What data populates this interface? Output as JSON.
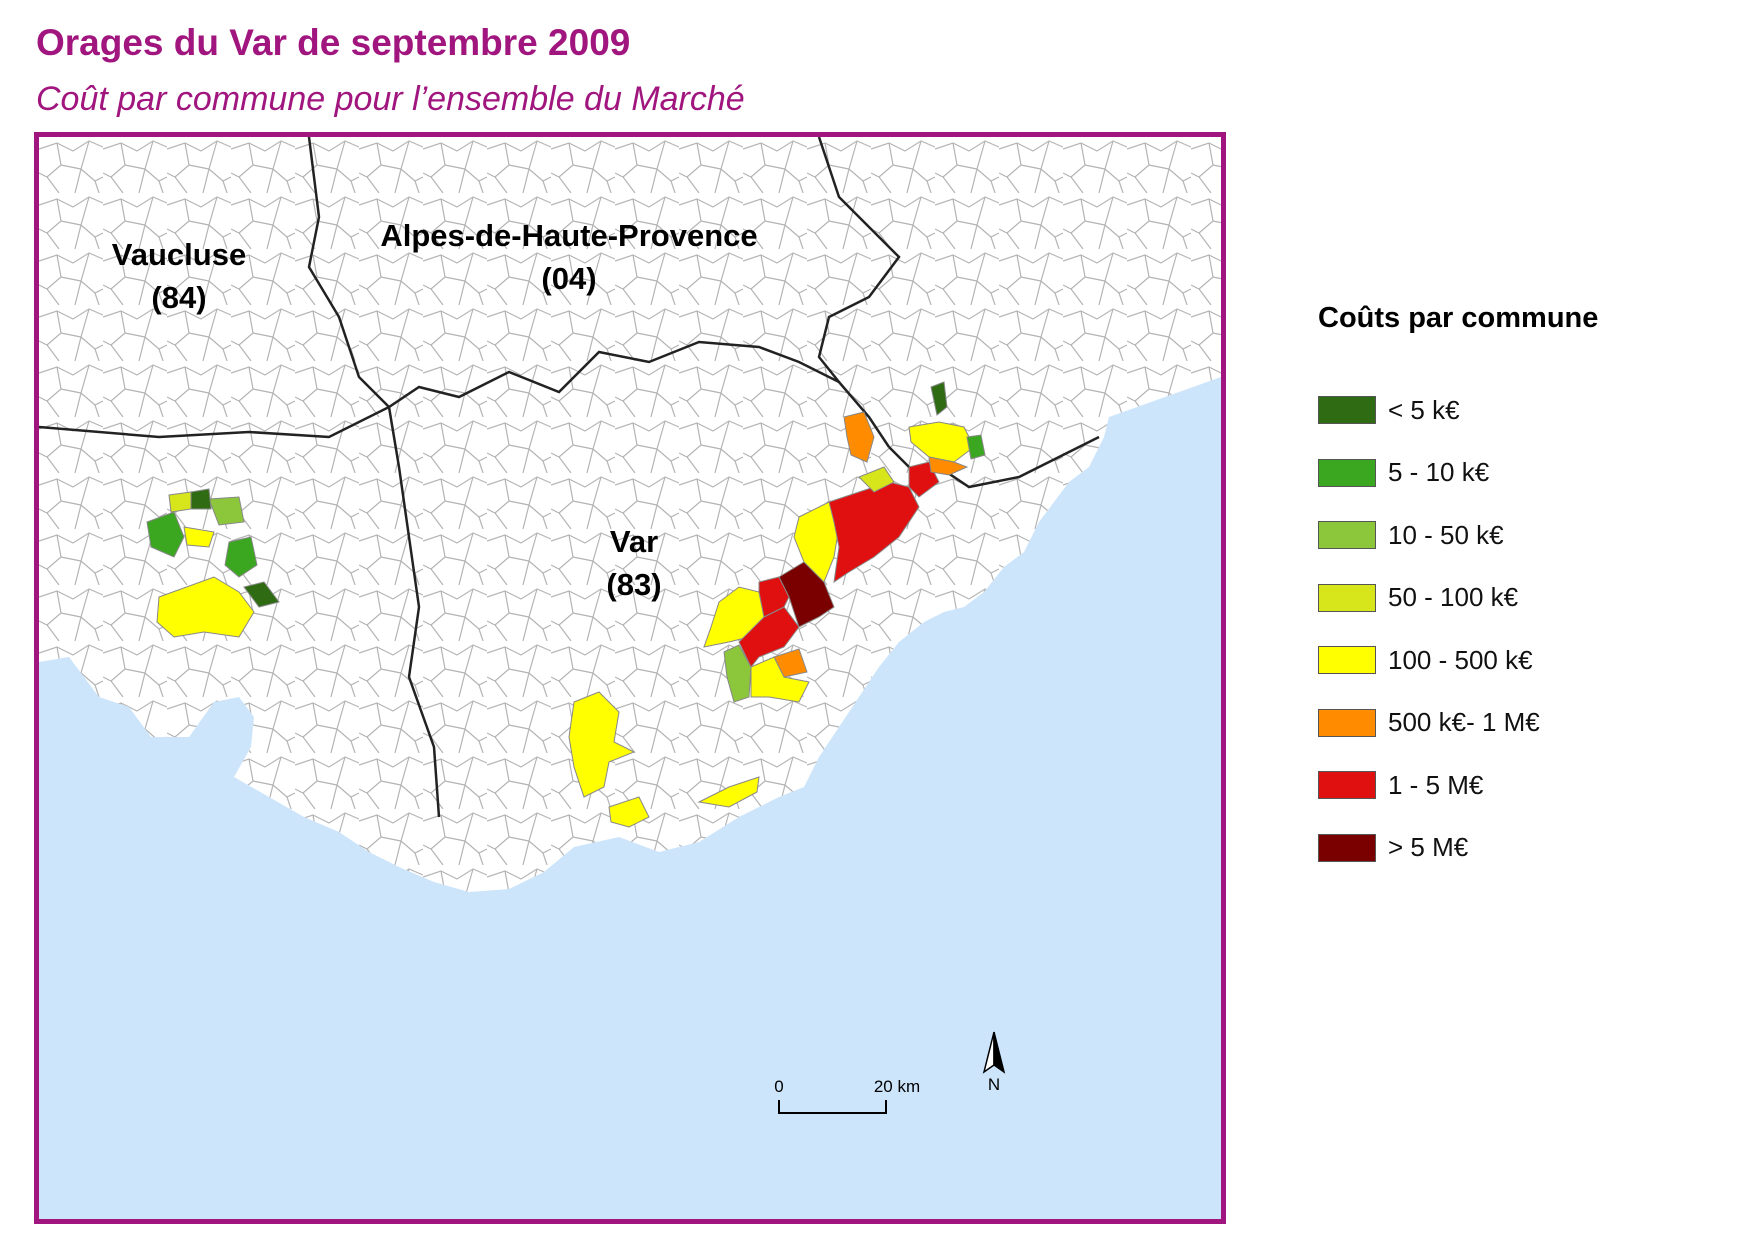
{
  "header": {
    "title": "Orages du Var de septembre 2009",
    "subtitle": "Coût par commune pour l’ensemble du Marché"
  },
  "map": {
    "sea_color": "#cde5fb",
    "boundary_color": "#8a8a8a",
    "region_labels": {
      "vaucluse_name": "Vaucluse",
      "vaucluse_code": "(84)",
      "ahp_name": "Alpes-de-Haute-Provence",
      "ahp_code": "(04)",
      "var_name": "Var",
      "var_code": "(83)"
    },
    "scale_bar": {
      "start_label": "0",
      "end_label": "20 km"
    },
    "north_arrow": {
      "label": "N",
      "icon": "north-arrow-icon"
    }
  },
  "legend": {
    "title": "Coûts par commune",
    "items": [
      {
        "label": "< 5 k€",
        "color": "#2f6b12"
      },
      {
        "label": "5 - 10 k€",
        "color": "#3ba61f"
      },
      {
        "label": "10 - 50 k€",
        "color": "#8cc63a"
      },
      {
        "label": "50 - 100 k€",
        "color": "#d6e61b"
      },
      {
        "label": "100 - 500 k€",
        "color": "#ffff00"
      },
      {
        "label": "500 k€- 1 M€",
        "color": "#ff8c00"
      },
      {
        "label": "1 - 5 M€",
        "color": "#e01010"
      },
      {
        "label": "> 5 M€",
        "color": "#7a0000"
      }
    ]
  }
}
